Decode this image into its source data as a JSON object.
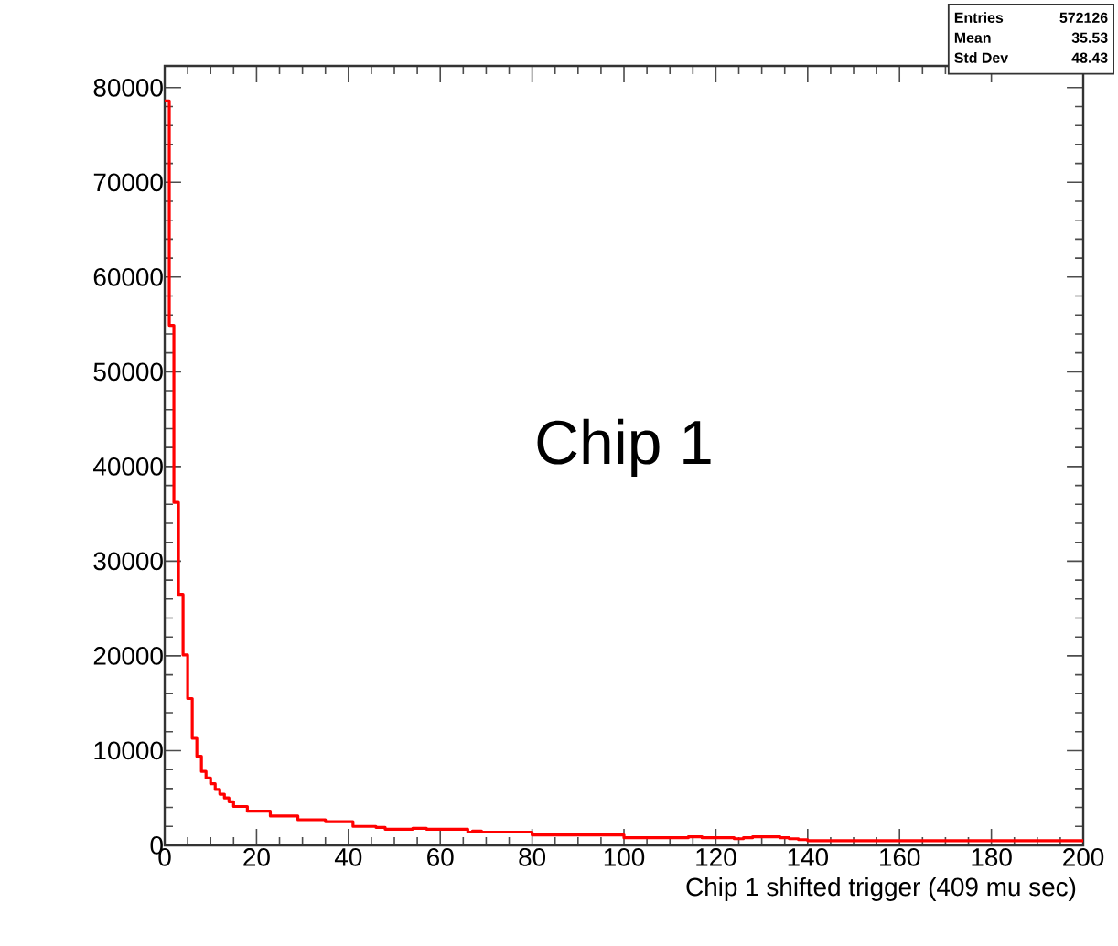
{
  "chart_data": {
    "type": "histogram",
    "xlabel": "Chip 1 shifted trigger (409 mu sec)",
    "annotations": [
      "Chip 1",
      "Entries",
      "572126",
      "Mean",
      "35.53",
      "Std Dev",
      "48.43"
    ],
    "bins": [
      0,
      1,
      2,
      3,
      4,
      5,
      6,
      7,
      8,
      9,
      10,
      11,
      12,
      13,
      14,
      15,
      16,
      17,
      18,
      19,
      20,
      21,
      22,
      23,
      24,
      25,
      26,
      27,
      28,
      29,
      30,
      31,
      32,
      33,
      34,
      35,
      36,
      37,
      38,
      39,
      40,
      41,
      42,
      43,
      44,
      45,
      46,
      47,
      48,
      49,
      50,
      51,
      52,
      53,
      54,
      55,
      56,
      57,
      58,
      59,
      60,
      61,
      62,
      63,
      64,
      65,
      66,
      67,
      68,
      69,
      70,
      71,
      72,
      73,
      74,
      75,
      76,
      77,
      78,
      79,
      80,
      81,
      82,
      83,
      84,
      85,
      86,
      87,
      88,
      89,
      90,
      91,
      92,
      93,
      94,
      95,
      96,
      97,
      98,
      99,
      100,
      101,
      102,
      103,
      104,
      105,
      106,
      107,
      108,
      109,
      110,
      111,
      112,
      113,
      114,
      115,
      116,
      117,
      118,
      119,
      120,
      121,
      122,
      123,
      124,
      125,
      126,
      127,
      128,
      129,
      130,
      131,
      132,
      133,
      134,
      135,
      136,
      137,
      138,
      139,
      140,
      141,
      142,
      143,
      144,
      145,
      146,
      147,
      148,
      149,
      150,
      151,
      152,
      153,
      154,
      155,
      156,
      157,
      158,
      159,
      160,
      161,
      162,
      163,
      164,
      165,
      166,
      167,
      168,
      169,
      170,
      171,
      172,
      173,
      174,
      175,
      176,
      177,
      178,
      179,
      180,
      181,
      182,
      183,
      184,
      185,
      186,
      187,
      188,
      189,
      190,
      191,
      192,
      193,
      194,
      195,
      196,
      197,
      198,
      199,
      200
    ],
    "values": [
      78600,
      54900,
      36200,
      26500,
      20100,
      15500,
      11300,
      9400,
      7800,
      7100,
      6500,
      5900,
      5400,
      5000,
      4600,
      4100,
      4100,
      4100,
      3600,
      3600,
      3600,
      3600,
      3600,
      3100,
      3100,
      3100,
      3100,
      3100,
      3100,
      2700,
      2700,
      2700,
      2700,
      2700,
      2700,
      2500,
      2500,
      2500,
      2500,
      2500,
      2500,
      2000,
      2000,
      2000,
      2000,
      2000,
      1900,
      1900,
      1700,
      1700,
      1700,
      1700,
      1700,
      1700,
      1800,
      1800,
      1800,
      1700,
      1700,
      1700,
      1700,
      1700,
      1700,
      1700,
      1700,
      1700,
      1400,
      1500,
      1500,
      1400,
      1400,
      1400,
      1400,
      1400,
      1400,
      1400,
      1400,
      1400,
      1400,
      1400,
      1100,
      1100,
      1100,
      1100,
      1100,
      1100,
      1100,
      1100,
      1100,
      1100,
      1100,
      1100,
      1100,
      1100,
      1100,
      1100,
      1100,
      1100,
      1100,
      1100,
      800,
      800,
      800,
      800,
      800,
      800,
      800,
      800,
      800,
      800,
      800,
      800,
      800,
      800,
      900,
      900,
      900,
      800,
      800,
      800,
      800,
      800,
      800,
      800,
      700,
      700,
      800,
      800,
      900,
      900,
      900,
      900,
      900,
      900,
      800,
      800,
      700,
      700,
      600,
      600,
      500,
      500,
      500,
      500,
      500,
      500,
      500,
      500,
      500,
      500,
      500,
      500,
      500,
      500,
      500,
      500,
      500,
      500,
      500,
      500,
      500,
      500,
      500,
      500,
      500,
      500,
      500,
      500,
      500,
      500,
      500,
      500,
      500,
      500,
      500,
      500,
      500,
      500,
      500,
      500,
      500,
      500,
      500,
      500,
      500,
      500,
      500,
      500,
      500,
      500,
      500,
      500,
      500,
      500,
      500,
      500,
      500,
      500,
      500,
      500
    ],
    "color": "#ff0000",
    "xlim": [
      0,
      200
    ],
    "ylim": [
      0,
      82300
    ],
    "xticks": [
      0,
      20,
      40,
      60,
      80,
      100,
      120,
      140,
      160,
      180,
      200
    ],
    "yticks": [
      0,
      10000,
      20000,
      30000,
      40000,
      50000,
      60000,
      70000,
      80000
    ],
    "grid": false
  }
}
